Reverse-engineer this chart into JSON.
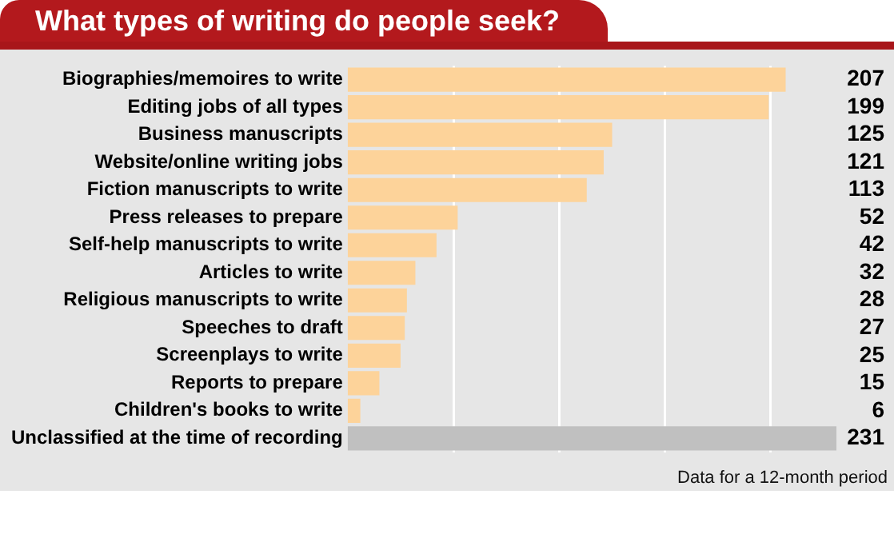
{
  "chart_data": {
    "type": "bar",
    "orientation": "horizontal",
    "title": "What types of writing do people seek?",
    "categories": [
      "Biographies/memoires to write",
      "Editing jobs of all types",
      "Business manuscripts",
      "Website/online writing jobs",
      "Fiction manuscripts to write",
      "Press releases to prepare",
      "Self-help manuscripts to write",
      "Articles to write",
      "Religious manuscripts to write",
      "Speeches to draft",
      "Screenplays to write",
      "Reports to prepare",
      "Children's books to write",
      "Unclassified at the time of recording"
    ],
    "values": [
      207,
      199,
      125,
      121,
      113,
      52,
      42,
      32,
      28,
      27,
      25,
      15,
      6,
      231
    ],
    "colors": [
      "#fdd39a",
      "#fdd39a",
      "#fdd39a",
      "#fdd39a",
      "#fdd39a",
      "#fdd39a",
      "#fdd39a",
      "#fdd39a",
      "#fdd39a",
      "#fdd39a",
      "#fdd39a",
      "#fdd39a",
      "#fdd39a",
      "#c0c0c0"
    ],
    "xlim": [
      0,
      231
    ],
    "xticks": [
      {
        "value": 50,
        "label": null
      },
      {
        "value": 100,
        "label": null
      },
      {
        "value": 150,
        "label": null
      },
      {
        "value": 200,
        "label": null
      }
    ],
    "grid": "x",
    "tick_labels": "y",
    "data_labels": true,
    "legend": false,
    "annotations": [
      "Data for a 12-month period"
    ]
  }
}
